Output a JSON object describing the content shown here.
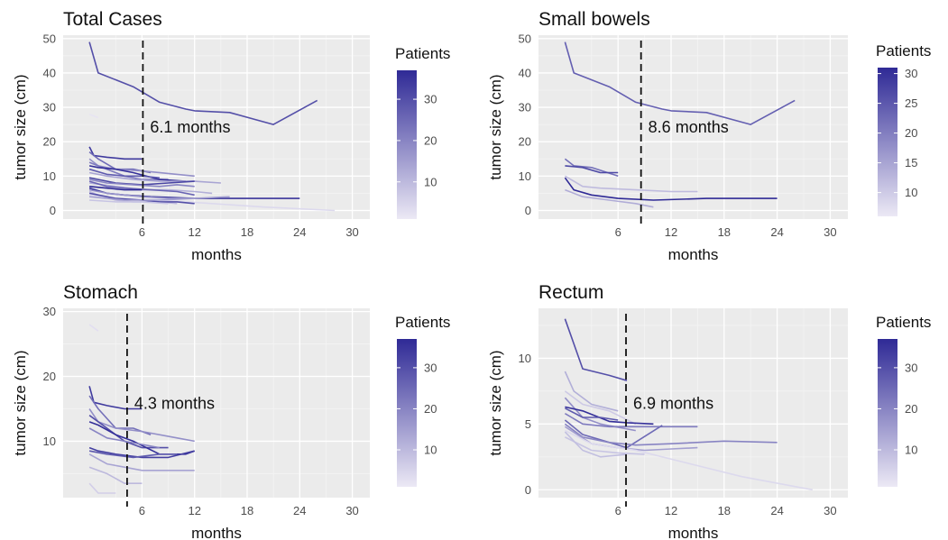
{
  "colors": {
    "panel_bg": "#ebebeb",
    "grid_major": "#ffffff",
    "grid_minor": "#f4f4f4",
    "low": "#ece9f5",
    "high": "#2f2a96",
    "axis_text": "#4d4d4d"
  },
  "chart_data": [
    {
      "type": "line",
      "title": "Total Cases",
      "xlabel": "months",
      "ylabel": "tumor size (cm)",
      "xlim": [
        -3,
        32
      ],
      "ylim": [
        -2.5,
        51
      ],
      "x_ticks": [
        "6",
        "12",
        "18",
        "24",
        "30"
      ],
      "y_ticks": [
        "0",
        "10",
        "20",
        "30",
        "40",
        "50"
      ],
      "x_tick_values": [
        6,
        12,
        18,
        24,
        30
      ],
      "y_tick_values": [
        0,
        10,
        20,
        30,
        40,
        50
      ],
      "grid": true,
      "legend_title": "Patients",
      "legend_ticks": [
        "10",
        "20",
        "30"
      ],
      "legend_tick_values": [
        10,
        20,
        30
      ],
      "legend_range": [
        1,
        37
      ],
      "legend_position": "right",
      "vline": {
        "x": 6.1,
        "label": "6.1 months"
      },
      "series": [
        {
          "patient": 30,
          "x": [
            0,
            1,
            5,
            8,
            11,
            12,
            16,
            21,
            26
          ],
          "y": [
            49,
            40,
            36,
            31.5,
            29.5,
            29,
            28.5,
            25,
            32
          ]
        },
        {
          "patient": 2,
          "x": [
            0,
            1
          ],
          "y": [
            28,
            27
          ]
        },
        {
          "patient": 34,
          "x": [
            0,
            0.5,
            2,
            4,
            6
          ],
          "y": [
            18.5,
            16,
            15.5,
            15,
            15
          ]
        },
        {
          "patient": 25,
          "x": [
            0,
            1,
            3,
            5,
            7
          ],
          "y": [
            17,
            15,
            12,
            12,
            11
          ]
        },
        {
          "patient": 18,
          "x": [
            0,
            1,
            3,
            6,
            10,
            12
          ],
          "y": [
            15,
            13,
            12,
            11.5,
            10.5,
            10
          ]
        },
        {
          "patient": 22,
          "x": [
            0,
            2,
            4,
            6,
            9
          ],
          "y": [
            14,
            12,
            10,
            9,
            9
          ]
        },
        {
          "patient": 36,
          "x": [
            0,
            1,
            3,
            5,
            8,
            11
          ],
          "y": [
            13,
            12.5,
            12,
            11,
            9,
            8.5
          ]
        },
        {
          "patient": 28,
          "x": [
            0,
            2,
            4,
            6,
            8
          ],
          "y": [
            12,
            10.5,
            10,
            10,
            9.5
          ]
        },
        {
          "patient": 14,
          "x": [
            0,
            2,
            5,
            8,
            12,
            15
          ],
          "y": [
            11,
            10,
            9,
            8.5,
            8.5,
            8
          ]
        },
        {
          "patient": 32,
          "x": [
            0,
            1,
            3,
            6,
            9,
            12
          ],
          "y": [
            9.5,
            9,
            8,
            7.5,
            8,
            8.5
          ]
        },
        {
          "patient": 20,
          "x": [
            0,
            2,
            5,
            8,
            10,
            12
          ],
          "y": [
            9,
            8,
            7.5,
            7,
            7.5,
            7
          ]
        },
        {
          "patient": 12,
          "x": [
            0,
            3,
            6,
            9,
            12,
            14
          ],
          "y": [
            8,
            7,
            6,
            6,
            5.5,
            5
          ]
        },
        {
          "patient": 26,
          "x": [
            0,
            2,
            4,
            7,
            10,
            12
          ],
          "y": [
            8.5,
            7,
            6.5,
            6,
            5.5,
            4.5
          ]
        },
        {
          "patient": 35,
          "x": [
            0,
            2,
            4,
            7,
            12,
            18,
            24
          ],
          "y": [
            6.5,
            5,
            4.5,
            4,
            3.5,
            3.5,
            3.5
          ]
        },
        {
          "patient": 37,
          "x": [
            0,
            2,
            4,
            6
          ],
          "y": [
            7,
            6.5,
            6,
            6
          ]
        },
        {
          "patient": 17,
          "x": [
            0,
            2,
            4,
            6,
            9,
            12
          ],
          "y": [
            6,
            5,
            4.5,
            4,
            3.5,
            3.5
          ]
        },
        {
          "patient": 10,
          "x": [
            0,
            1,
            3,
            5,
            8,
            10
          ],
          "y": [
            5.5,
            4.5,
            3,
            2.5,
            2.5,
            2
          ]
        },
        {
          "patient": 4,
          "x": [
            0,
            3,
            8,
            14,
            20,
            28
          ],
          "y": [
            4.5,
            3.5,
            3,
            2,
            1,
            0
          ]
        },
        {
          "patient": 30,
          "x": [
            0,
            1,
            3,
            6,
            8,
            10,
            12
          ],
          "y": [
            5,
            4.5,
            3.5,
            3,
            2.5,
            2.5,
            2
          ]
        },
        {
          "patient": 15,
          "x": [
            0,
            2,
            4,
            8,
            12,
            16
          ],
          "y": [
            4,
            3.5,
            3,
            3,
            3.5,
            4
          ]
        },
        {
          "patient": 8,
          "x": [
            0,
            3,
            6,
            9
          ],
          "y": [
            3,
            2.5,
            2.5,
            2
          ]
        }
      ]
    },
    {
      "type": "line",
      "title": "Small bowels",
      "xlabel": "months",
      "ylabel": "tumor size (cm)",
      "xlim": [
        -3,
        32
      ],
      "ylim": [
        -2.5,
        51
      ],
      "x_ticks": [
        "6",
        "12",
        "18",
        "24",
        "30"
      ],
      "y_ticks": [
        "0",
        "10",
        "20",
        "30",
        "40",
        "50"
      ],
      "x_tick_values": [
        6,
        12,
        18,
        24,
        30
      ],
      "y_tick_values": [
        0,
        10,
        20,
        30,
        40,
        50
      ],
      "grid": true,
      "legend_title": "Patients",
      "legend_ticks": [
        "10",
        "15",
        "20",
        "25",
        "30"
      ],
      "legend_tick_values": [
        10,
        15,
        20,
        25,
        30
      ],
      "legend_range": [
        6,
        31
      ],
      "legend_position": "right",
      "vline": {
        "x": 8.6,
        "label": "8.6 months"
      },
      "series": [
        {
          "patient": 24,
          "x": [
            0,
            1,
            5,
            8,
            11,
            12,
            16,
            21,
            26
          ],
          "y": [
            49,
            40,
            36,
            31.5,
            29.5,
            29,
            28.5,
            25,
            32
          ]
        },
        {
          "patient": 22,
          "x": [
            0,
            1,
            3,
            6
          ],
          "y": [
            15,
            13,
            12.5,
            10
          ]
        },
        {
          "patient": 27,
          "x": [
            0,
            2,
            4,
            6
          ],
          "y": [
            13,
            12.5,
            11,
            11
          ]
        },
        {
          "patient": 12,
          "x": [
            0,
            2,
            4,
            8,
            12,
            15
          ],
          "y": [
            10,
            7,
            6.5,
            6,
            5.5,
            5.5
          ]
        },
        {
          "patient": 31,
          "x": [
            0,
            1,
            3,
            6,
            10,
            16,
            24
          ],
          "y": [
            9.5,
            6,
            4.5,
            3.5,
            3,
            3.5,
            3.5
          ]
        },
        {
          "patient": 14,
          "x": [
            0,
            2,
            5,
            8,
            10
          ],
          "y": [
            6,
            4,
            3,
            2,
            1
          ]
        }
      ]
    },
    {
      "type": "line",
      "title": "Stomach",
      "xlabel": "months",
      "ylabel": "tumor size (cm)",
      "xlim": [
        -3,
        32
      ],
      "ylim": [
        1.3,
        30.5
      ],
      "x_ticks": [
        "6",
        "12",
        "18",
        "24",
        "30"
      ],
      "y_ticks": [
        "10",
        "20",
        "30"
      ],
      "x_tick_values": [
        6,
        12,
        18,
        24,
        30
      ],
      "y_tick_values": [
        10,
        20,
        30
      ],
      "grid": true,
      "legend_title": "Patients",
      "legend_ticks": [
        "10",
        "20",
        "30"
      ],
      "legend_tick_values": [
        10,
        20,
        30
      ],
      "legend_range": [
        1,
        37
      ],
      "legend_position": "right",
      "vline": {
        "x": 4.3,
        "label": "4.3 months"
      },
      "series": [
        {
          "patient": 3,
          "x": [
            0,
            1
          ],
          "y": [
            28,
            27
          ]
        },
        {
          "patient": 34,
          "x": [
            0,
            0.5,
            2,
            4,
            6
          ],
          "y": [
            18.5,
            16,
            15.5,
            15,
            15
          ]
        },
        {
          "patient": 24,
          "x": [
            0,
            1,
            3,
            5,
            7
          ],
          "y": [
            17,
            15,
            12,
            12,
            11
          ]
        },
        {
          "patient": 18,
          "x": [
            0,
            1,
            3,
            6,
            10,
            12
          ],
          "y": [
            15,
            13,
            12,
            11.5,
            10.5,
            10
          ]
        },
        {
          "patient": 30,
          "x": [
            0,
            2,
            4,
            6,
            9
          ],
          "y": [
            14,
            12,
            10,
            9,
            9
          ]
        },
        {
          "patient": 36,
          "x": [
            0,
            1,
            3,
            5,
            8,
            11,
            12
          ],
          "y": [
            13,
            12.5,
            11,
            10,
            8,
            8,
            8.5
          ]
        },
        {
          "patient": 20,
          "x": [
            0,
            2,
            4,
            6,
            8
          ],
          "y": [
            12,
            10.5,
            10,
            9.5,
            9
          ]
        },
        {
          "patient": 33,
          "x": [
            0,
            1,
            3,
            6,
            9,
            12
          ],
          "y": [
            9,
            8.5,
            8,
            7.5,
            7.5,
            8.5
          ]
        },
        {
          "patient": 28,
          "x": [
            0,
            2,
            5,
            8,
            10
          ],
          "y": [
            8.5,
            8,
            7.5,
            8,
            8
          ]
        },
        {
          "patient": 14,
          "x": [
            0,
            2,
            4,
            6,
            9,
            12
          ],
          "y": [
            8,
            6.5,
            6,
            5.5,
            5.5,
            5.5
          ]
        },
        {
          "patient": 10,
          "x": [
            0,
            2,
            4,
            6
          ],
          "y": [
            6,
            5,
            3.5,
            3.5
          ]
        },
        {
          "patient": 6,
          "x": [
            0,
            1,
            3
          ],
          "y": [
            3.5,
            2,
            2
          ]
        }
      ]
    },
    {
      "type": "line",
      "title": "Rectum",
      "xlabel": "months",
      "ylabel": "tumor size (cm)",
      "xlim": [
        -3,
        32
      ],
      "ylim": [
        -0.6,
        13.8
      ],
      "x_ticks": [
        "6",
        "12",
        "18",
        "24",
        "30"
      ],
      "y_ticks": [
        "0",
        "5",
        "10"
      ],
      "x_tick_values": [
        6,
        12,
        18,
        24,
        30
      ],
      "y_tick_values": [
        0,
        5,
        10
      ],
      "grid": true,
      "legend_title": "Patients",
      "legend_ticks": [
        "10",
        "20",
        "30"
      ],
      "legend_tick_values": [
        10,
        20,
        30
      ],
      "legend_range": [
        1,
        37
      ],
      "legend_position": "right",
      "vline": {
        "x": 6.9,
        "label": "6.9 months"
      },
      "series": [
        {
          "patient": 30,
          "x": [
            0,
            2,
            5,
            7
          ],
          "y": [
            13,
            9.2,
            8.7,
            8.3
          ]
        },
        {
          "patient": 12,
          "x": [
            0,
            1,
            3,
            6
          ],
          "y": [
            9,
            7.5,
            6.5,
            6
          ]
        },
        {
          "patient": 7,
          "x": [
            0,
            2,
            5,
            8
          ],
          "y": [
            7.5,
            6.5,
            6,
            5
          ]
        },
        {
          "patient": 18,
          "x": [
            0,
            2,
            4,
            8
          ],
          "y": [
            7,
            5.5,
            5,
            4.5
          ]
        },
        {
          "patient": 36,
          "x": [
            0,
            2,
            5,
            7,
            10
          ],
          "y": [
            6.3,
            6,
            5.2,
            5.1,
            5
          ]
        },
        {
          "patient": 28,
          "x": [
            0,
            2,
            4,
            6
          ],
          "y": [
            6.2,
            5.5,
            5.5,
            5.3
          ]
        },
        {
          "patient": 22,
          "x": [
            0,
            2,
            5,
            10,
            15
          ],
          "y": [
            5.8,
            5,
            4.8,
            4.8,
            4.8
          ]
        },
        {
          "patient": 25,
          "x": [
            0,
            2,
            4,
            7,
            11
          ],
          "y": [
            5.3,
            4.2,
            3.8,
            3.2,
            4.9
          ]
        },
        {
          "patient": 20,
          "x": [
            0,
            2,
            5,
            8,
            12,
            18,
            24
          ],
          "y": [
            5,
            4,
            3.6,
            3.4,
            3.5,
            3.7,
            3.6
          ]
        },
        {
          "patient": 15,
          "x": [
            0,
            3,
            6,
            9,
            12,
            15
          ],
          "y": [
            4.8,
            3.5,
            3.2,
            3,
            3.1,
            3.2
          ]
        },
        {
          "patient": 8,
          "x": [
            0,
            3,
            6,
            9
          ],
          "y": [
            4,
            3,
            2.8,
            2.7
          ]
        },
        {
          "patient": 9,
          "x": [
            0,
            2,
            4,
            7
          ],
          "y": [
            4.4,
            3,
            2.5,
            2.7
          ]
        },
        {
          "patient": 4,
          "x": [
            0,
            3,
            8,
            14,
            20,
            28
          ],
          "y": [
            4.5,
            3.5,
            3,
            2,
            1,
            0
          ]
        }
      ]
    }
  ]
}
